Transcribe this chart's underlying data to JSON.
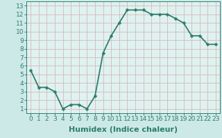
{
  "x": [
    0,
    1,
    2,
    3,
    4,
    5,
    6,
    7,
    8,
    9,
    10,
    11,
    12,
    13,
    14,
    15,
    16,
    17,
    18,
    19,
    20,
    21,
    22,
    23
  ],
  "y": [
    5.5,
    3.5,
    3.5,
    3.0,
    1.0,
    1.5,
    1.5,
    1.0,
    2.5,
    7.5,
    9.5,
    11.0,
    12.5,
    12.5,
    12.5,
    12.0,
    12.0,
    12.0,
    11.5,
    11.0,
    9.5,
    9.5,
    8.5,
    8.5
  ],
  "xlabel": "Humidex (Indice chaleur)",
  "xlim": [
    -0.5,
    23.5
  ],
  "ylim": [
    0.5,
    13.5
  ],
  "xticks": [
    0,
    1,
    2,
    3,
    4,
    5,
    6,
    7,
    8,
    9,
    10,
    11,
    12,
    13,
    14,
    15,
    16,
    17,
    18,
    19,
    20,
    21,
    22,
    23
  ],
  "yticks": [
    1,
    2,
    3,
    4,
    5,
    6,
    7,
    8,
    9,
    10,
    11,
    12,
    13
  ],
  "line_color": "#2e7d6e",
  "bg_color": "#cce9e7",
  "grid_color": "#d4b8b8",
  "axis_bg": "#dff2f0",
  "xlabel_fontsize": 8,
  "tick_fontsize": 6.5,
  "line_width": 1.3,
  "marker_size": 2.5
}
